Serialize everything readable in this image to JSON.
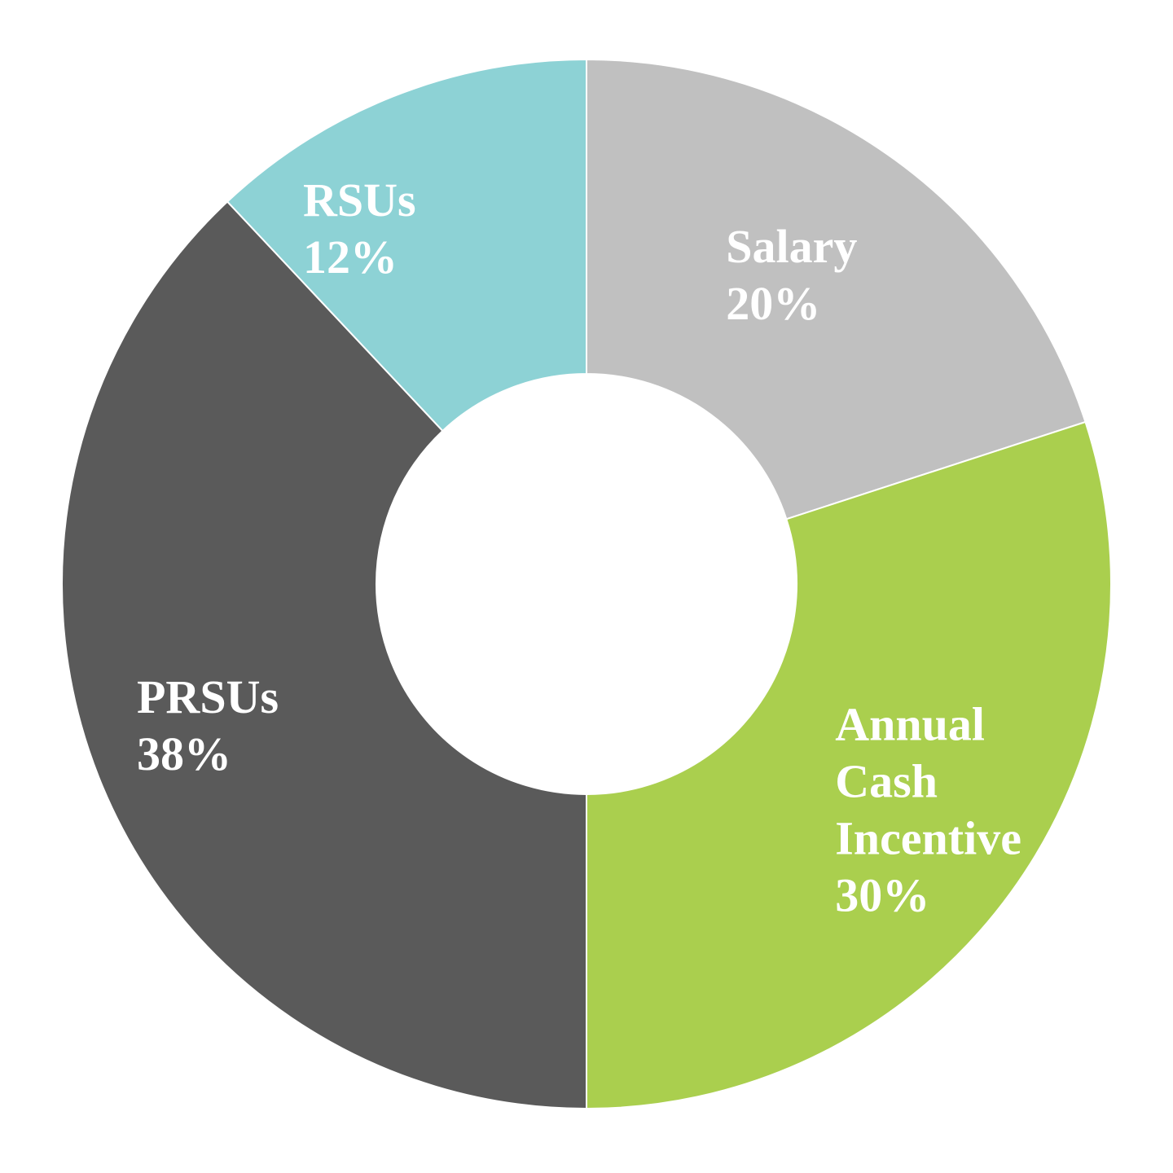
{
  "chart_data": {
    "type": "pie",
    "variant": "donut",
    "start_angle_deg": 0,
    "direction": "clockwise",
    "slices": [
      {
        "label_lines": [
          "Salary"
        ],
        "value_label": "20%",
        "value": 20,
        "color": "#c0c0c0"
      },
      {
        "label_lines": [
          "Annual",
          "Cash",
          "Incentive"
        ],
        "value_label": "30%",
        "value": 30,
        "color": "#aacf4e"
      },
      {
        "label_lines": [
          "PRSUs"
        ],
        "value_label": "38%",
        "value": 38,
        "color": "#5a5a5a"
      },
      {
        "label_lines": [
          "RSUs"
        ],
        "value_label": "12%",
        "value": 12,
        "color": "#8dd2d5"
      }
    ],
    "title": "",
    "legend": "none",
    "separator_color": "#ffffff"
  }
}
